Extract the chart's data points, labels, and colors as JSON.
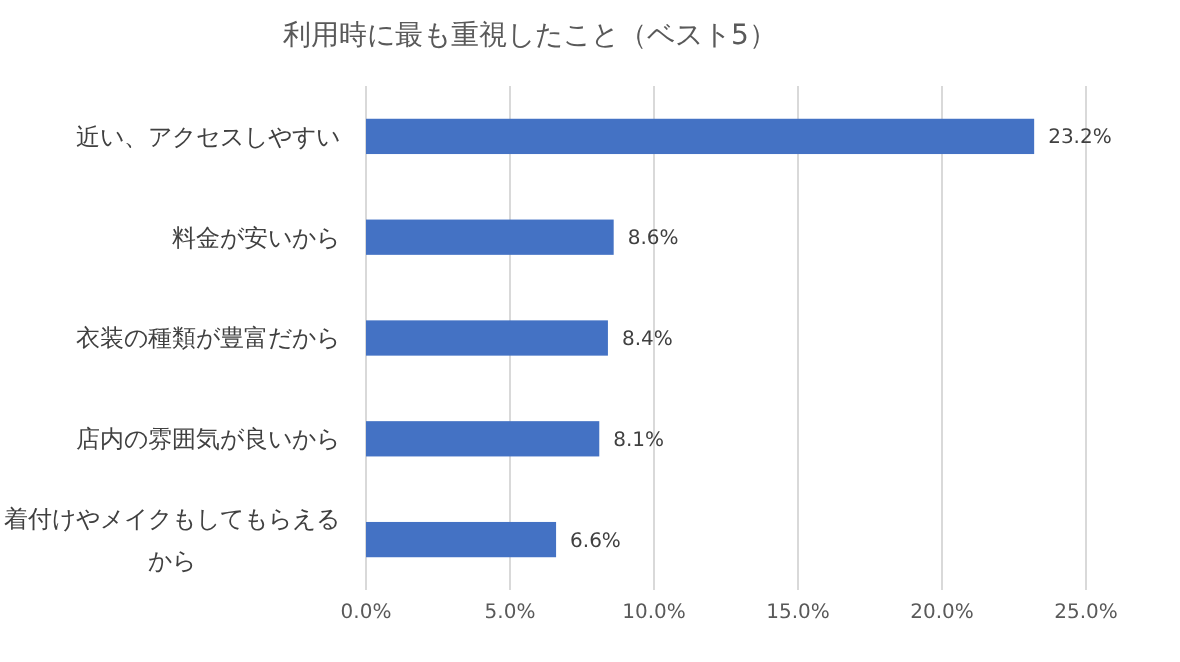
{
  "chart_data": {
    "type": "bar",
    "orientation": "horizontal",
    "title": "利用時に最も重視したこと（ベスト5）",
    "categories": [
      "近い、アクセスしやすい",
      "料金が安いから",
      "衣装の種類が豊富だから",
      "店内の雰囲気が良いから",
      "着付けやメイクもしてもらえるから"
    ],
    "values": [
      23.2,
      8.6,
      8.4,
      8.1,
      6.6
    ],
    "value_labels": [
      "23.2%",
      "8.6%",
      "8.4%",
      "8.1%",
      "6.6%"
    ],
    "color": "#4472c4",
    "xlim": [
      0,
      25
    ],
    "xticks": [
      {
        "value": 0,
        "label": "0.0%"
      },
      {
        "value": 5,
        "label": "5.0%"
      },
      {
        "value": 10,
        "label": "10.0%"
      },
      {
        "value": 15,
        "label": "15.0%"
      },
      {
        "value": 20,
        "label": "20.0%"
      },
      {
        "value": 25,
        "label": "25.0%"
      }
    ],
    "grid": "x"
  }
}
